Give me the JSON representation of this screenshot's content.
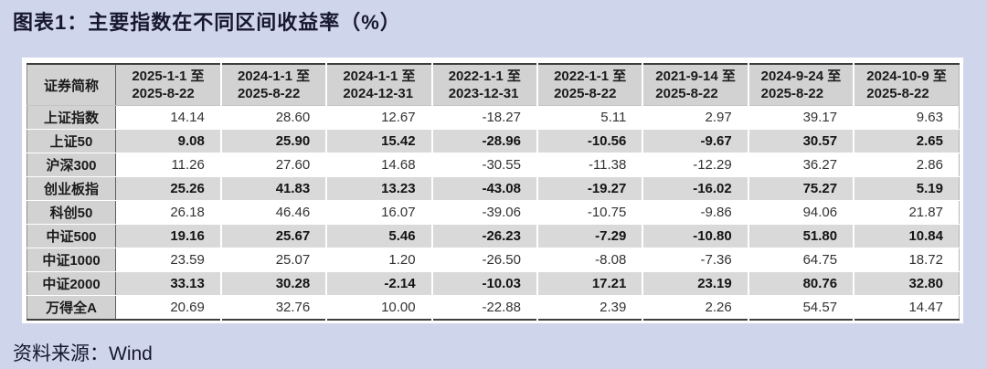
{
  "title": "图表1：主要指数在不同区间收益率（%）",
  "source_label": "资料来源：Wind",
  "colors": {
    "page_background": "#cfd6ec",
    "card_background": "#ffffff",
    "header_gray": "#d2d2d2",
    "shaded_row_gray": "#d9d9d9",
    "title_text": "#17172f",
    "table_border": "#3e3e3e"
  },
  "table": {
    "corner_header": "证券简称",
    "period_headers": [
      {
        "line1": "2025-1-1 至",
        "line2": "2025-8-22"
      },
      {
        "line1": "2024-1-1 至",
        "line2": "2025-8-22"
      },
      {
        "line1": "2024-1-1 至",
        "line2": "2024-12-31"
      },
      {
        "line1": "2022-1-1 至",
        "line2": "2023-12-31"
      },
      {
        "line1": "2022-1-1 至",
        "line2": "2025-8-22"
      },
      {
        "line1": "2021-9-14 至",
        "line2": "2025-8-22"
      },
      {
        "line1": "2024-9-24 至",
        "line2": "2025-8-22"
      },
      {
        "line1": "2024-10-9 至",
        "line2": "2025-8-22"
      }
    ],
    "rows": [
      {
        "name": "上证指数",
        "shaded": false,
        "values": [
          "14.14",
          "28.60",
          "12.67",
          "-18.27",
          "5.11",
          "2.97",
          "39.17",
          "9.63"
        ]
      },
      {
        "name": "上证50",
        "shaded": true,
        "values": [
          "9.08",
          "25.90",
          "15.42",
          "-28.96",
          "-10.56",
          "-9.67",
          "30.57",
          "2.65"
        ]
      },
      {
        "name": "沪深300",
        "shaded": false,
        "values": [
          "11.26",
          "27.60",
          "14.68",
          "-30.55",
          "-11.38",
          "-12.29",
          "36.27",
          "2.86"
        ]
      },
      {
        "name": "创业板指",
        "shaded": true,
        "values": [
          "25.26",
          "41.83",
          "13.23",
          "-43.08",
          "-19.27",
          "-16.02",
          "75.27",
          "5.19"
        ]
      },
      {
        "name": "科创50",
        "shaded": false,
        "values": [
          "26.18",
          "46.46",
          "16.07",
          "-39.06",
          "-10.75",
          "-9.86",
          "94.06",
          "21.87"
        ]
      },
      {
        "name": "中证500",
        "shaded": true,
        "values": [
          "19.16",
          "25.67",
          "5.46",
          "-26.23",
          "-7.29",
          "-10.80",
          "51.80",
          "10.84"
        ]
      },
      {
        "name": "中证1000",
        "shaded": false,
        "values": [
          "23.59",
          "25.07",
          "1.20",
          "-26.50",
          "-8.08",
          "-7.36",
          "64.75",
          "18.72"
        ]
      },
      {
        "name": "中证2000",
        "shaded": true,
        "values": [
          "33.13",
          "30.28",
          "-2.14",
          "-10.03",
          "17.21",
          "23.19",
          "80.76",
          "32.80"
        ]
      },
      {
        "name": "万得全A",
        "shaded": false,
        "values": [
          "20.69",
          "32.76",
          "10.00",
          "-22.88",
          "2.39",
          "2.26",
          "54.57",
          "14.47"
        ]
      }
    ]
  }
}
